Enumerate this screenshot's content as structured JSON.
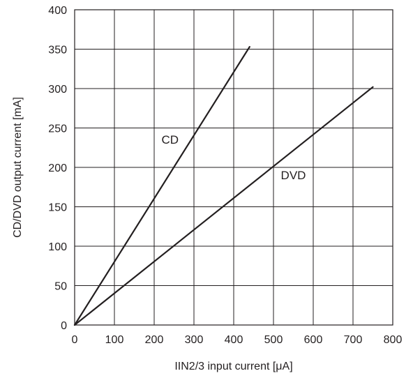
{
  "chart_data": {
    "type": "line",
    "xlabel": "IIN2/3 input current [μA]",
    "ylabel": "CD/DVD output current [mA]",
    "xlim": [
      0,
      800
    ],
    "ylim": [
      0,
      400
    ],
    "xticks": [
      0,
      100,
      200,
      300,
      400,
      500,
      600,
      700,
      800
    ],
    "yticks": [
      0,
      50,
      100,
      150,
      200,
      250,
      300,
      350,
      400
    ],
    "grid": true,
    "legend": "none",
    "series": [
      {
        "name": "CD",
        "x": [
          0,
          440
        ],
        "y": [
          0,
          353
        ],
        "label_at": [
          240,
          230
        ]
      },
      {
        "name": "DVD",
        "x": [
          0,
          750
        ],
        "y": [
          0,
          302
        ],
        "label_at": [
          550,
          185
        ]
      }
    ],
    "colors": {
      "line": "#231f20",
      "grid": "#231f20"
    }
  }
}
